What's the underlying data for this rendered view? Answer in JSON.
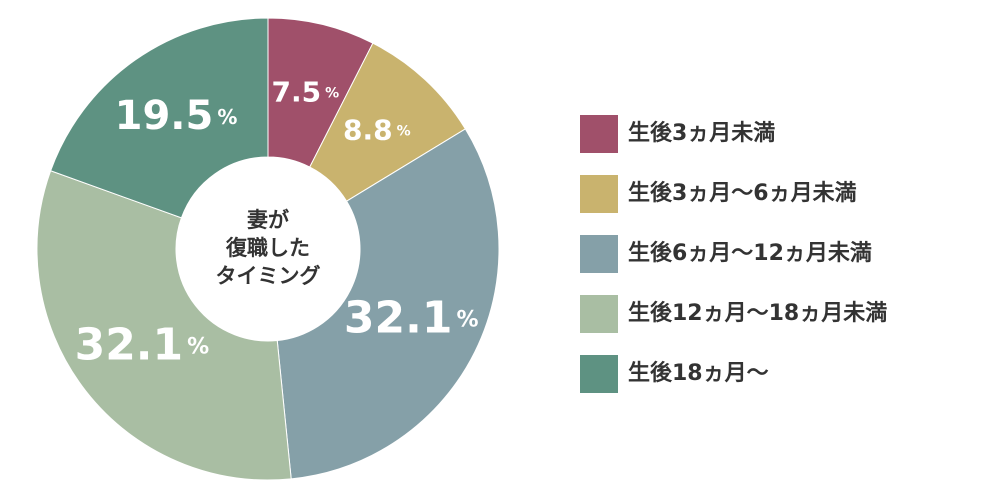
{
  "chart_data": {
    "type": "donut",
    "center_label": [
      "妻が",
      "復職した",
      "タイミング"
    ],
    "categories": [
      "生後3ヵ月未満",
      "生後3ヵ月〜6ヵ月未満",
      "生後6ヵ月〜12ヵ月未満",
      "生後12ヵ月〜18ヵ月未満",
      "生後18ヵ月〜"
    ],
    "values": [
      7.5,
      8.8,
      32.1,
      32.1,
      19.5
    ],
    "value_unit": "%",
    "colors": [
      "#a0506a",
      "#c9b36e",
      "#85a0a8",
      "#a9bea3",
      "#5e9282"
    ],
    "legend": "right"
  }
}
